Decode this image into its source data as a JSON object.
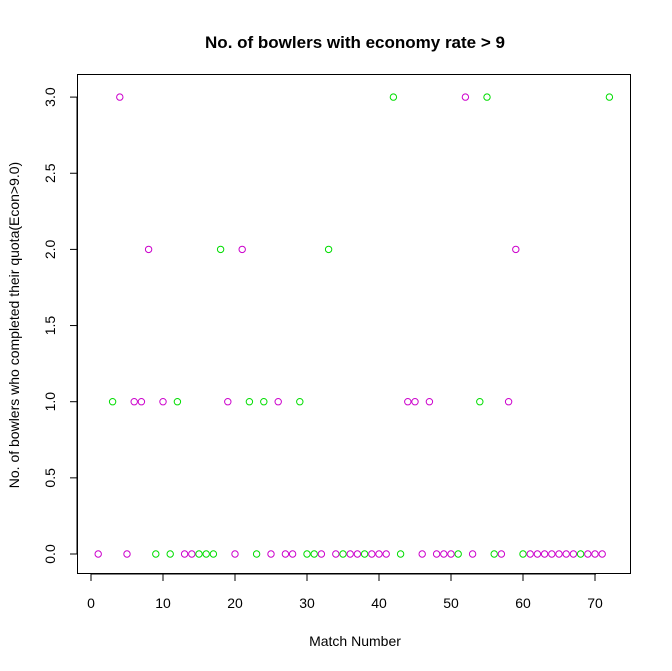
{
  "chart_data": {
    "type": "scatter",
    "title": "No. of bowlers with economy rate > 9",
    "xlabel": "Match Number",
    "ylabel": "No. of bowlers who completed their quota(Econ>9.0)",
    "xlim": [
      0,
      73
    ],
    "ylim": [
      0,
      3
    ],
    "x_ticks": [
      "0",
      "10",
      "20",
      "30",
      "40",
      "50",
      "60",
      "70"
    ],
    "y_ticks": [
      "0.0",
      "0.5",
      "1.0",
      "1.5",
      "2.0",
      "2.5",
      "3.0"
    ],
    "colors": {
      "magenta": "#cc00cc",
      "green": "#00dd00"
    },
    "grid": false,
    "legend": "none",
    "points": [
      {
        "x": 1,
        "y": 0,
        "color": "magenta"
      },
      {
        "x": 3,
        "y": 1,
        "color": "green"
      },
      {
        "x": 4,
        "y": 3,
        "color": "magenta"
      },
      {
        "x": 5,
        "y": 0,
        "color": "magenta"
      },
      {
        "x": 6,
        "y": 1,
        "color": "magenta"
      },
      {
        "x": 7,
        "y": 1,
        "color": "magenta"
      },
      {
        "x": 8,
        "y": 2,
        "color": "magenta"
      },
      {
        "x": 9,
        "y": 0,
        "color": "green"
      },
      {
        "x": 10,
        "y": 1,
        "color": "magenta"
      },
      {
        "x": 11,
        "y": 0,
        "color": "green"
      },
      {
        "x": 12,
        "y": 1,
        "color": "green"
      },
      {
        "x": 13,
        "y": 0,
        "color": "magenta"
      },
      {
        "x": 14,
        "y": 0,
        "color": "magenta"
      },
      {
        "x": 15,
        "y": 0,
        "color": "green"
      },
      {
        "x": 16,
        "y": 0,
        "color": "green"
      },
      {
        "x": 17,
        "y": 0,
        "color": "green"
      },
      {
        "x": 18,
        "y": 2,
        "color": "green"
      },
      {
        "x": 19,
        "y": 1,
        "color": "magenta"
      },
      {
        "x": 20,
        "y": 0,
        "color": "magenta"
      },
      {
        "x": 21,
        "y": 2,
        "color": "magenta"
      },
      {
        "x": 22,
        "y": 1,
        "color": "green"
      },
      {
        "x": 23,
        "y": 0,
        "color": "green"
      },
      {
        "x": 24,
        "y": 1,
        "color": "green"
      },
      {
        "x": 25,
        "y": 0,
        "color": "magenta"
      },
      {
        "x": 26,
        "y": 1,
        "color": "magenta"
      },
      {
        "x": 27,
        "y": 0,
        "color": "magenta"
      },
      {
        "x": 28,
        "y": 0,
        "color": "magenta"
      },
      {
        "x": 29,
        "y": 1,
        "color": "green"
      },
      {
        "x": 30,
        "y": 0,
        "color": "green"
      },
      {
        "x": 31,
        "y": 0,
        "color": "green"
      },
      {
        "x": 32,
        "y": 0,
        "color": "magenta"
      },
      {
        "x": 33,
        "y": 2,
        "color": "green"
      },
      {
        "x": 34,
        "y": 0,
        "color": "magenta"
      },
      {
        "x": 35,
        "y": 0,
        "color": "green"
      },
      {
        "x": 36,
        "y": 0,
        "color": "magenta"
      },
      {
        "x": 37,
        "y": 0,
        "color": "magenta"
      },
      {
        "x": 38,
        "y": 0,
        "color": "green"
      },
      {
        "x": 39,
        "y": 0,
        "color": "magenta"
      },
      {
        "x": 40,
        "y": 0,
        "color": "magenta"
      },
      {
        "x": 41,
        "y": 0,
        "color": "magenta"
      },
      {
        "x": 42,
        "y": 3,
        "color": "green"
      },
      {
        "x": 43,
        "y": 0,
        "color": "green"
      },
      {
        "x": 44,
        "y": 1,
        "color": "magenta"
      },
      {
        "x": 45,
        "y": 1,
        "color": "magenta"
      },
      {
        "x": 46,
        "y": 0,
        "color": "magenta"
      },
      {
        "x": 47,
        "y": 1,
        "color": "magenta"
      },
      {
        "x": 48,
        "y": 0,
        "color": "magenta"
      },
      {
        "x": 49,
        "y": 0,
        "color": "magenta"
      },
      {
        "x": 50,
        "y": 0,
        "color": "magenta"
      },
      {
        "x": 51,
        "y": 0,
        "color": "green"
      },
      {
        "x": 52,
        "y": 3,
        "color": "magenta"
      },
      {
        "x": 53,
        "y": 0,
        "color": "magenta"
      },
      {
        "x": 54,
        "y": 1,
        "color": "green"
      },
      {
        "x": 55,
        "y": 3,
        "color": "green"
      },
      {
        "x": 56,
        "y": 0,
        "color": "green"
      },
      {
        "x": 57,
        "y": 0,
        "color": "magenta"
      },
      {
        "x": 58,
        "y": 1,
        "color": "magenta"
      },
      {
        "x": 59,
        "y": 2,
        "color": "magenta"
      },
      {
        "x": 60,
        "y": 0,
        "color": "green"
      },
      {
        "x": 61,
        "y": 0,
        "color": "magenta"
      },
      {
        "x": 62,
        "y": 0,
        "color": "magenta"
      },
      {
        "x": 63,
        "y": 0,
        "color": "magenta"
      },
      {
        "x": 64,
        "y": 0,
        "color": "magenta"
      },
      {
        "x": 65,
        "y": 0,
        "color": "magenta"
      },
      {
        "x": 66,
        "y": 0,
        "color": "magenta"
      },
      {
        "x": 67,
        "y": 0,
        "color": "magenta"
      },
      {
        "x": 68,
        "y": 0,
        "color": "green"
      },
      {
        "x": 69,
        "y": 0,
        "color": "magenta"
      },
      {
        "x": 70,
        "y": 0,
        "color": "magenta"
      },
      {
        "x": 71,
        "y": 0,
        "color": "magenta"
      },
      {
        "x": 72,
        "y": 3,
        "color": "green"
      }
    ]
  }
}
